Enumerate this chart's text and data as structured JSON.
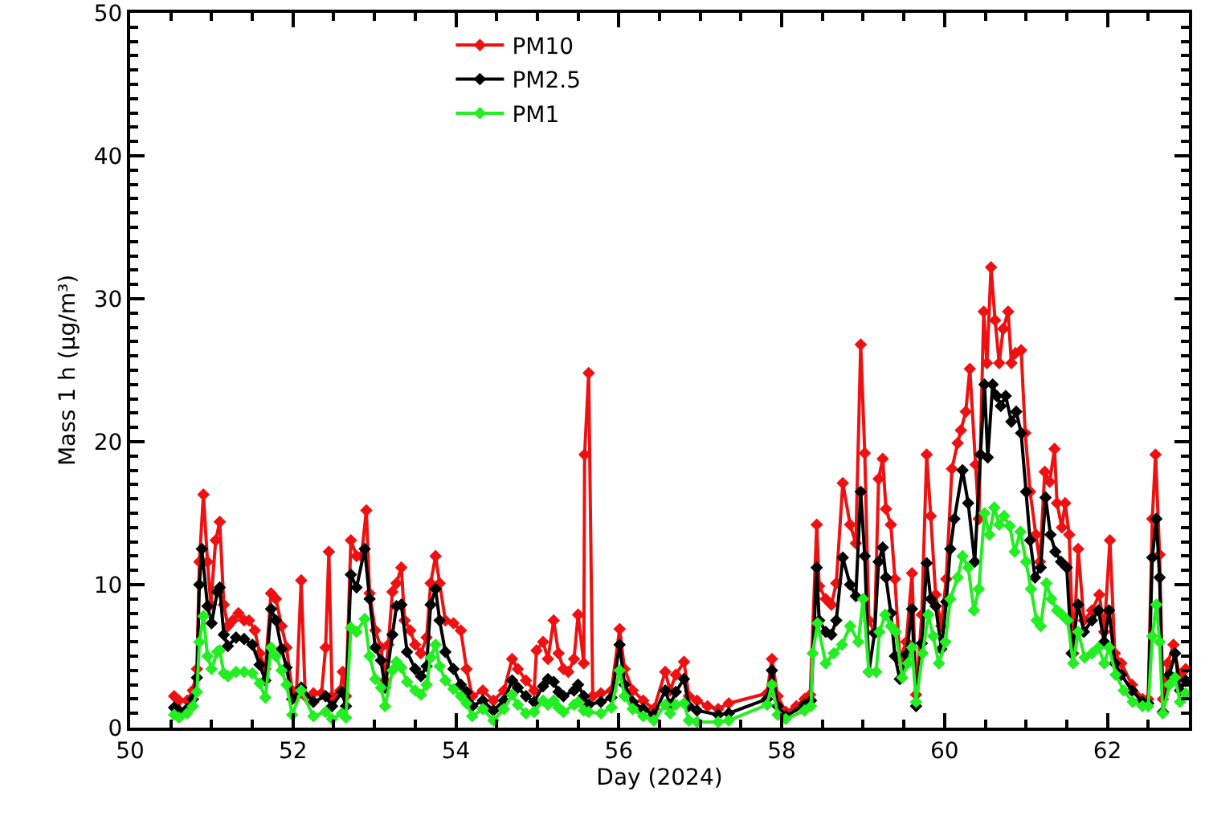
{
  "chart_data": {
    "type": "line",
    "xlabel": "Day (2024)",
    "ylabel": "Mass 1 h (μg/m³)",
    "xlim": [
      50,
      63
    ],
    "xticks": [
      50,
      52,
      54,
      56,
      58,
      60,
      62
    ],
    "ylim": [
      0,
      50
    ],
    "yticks": [
      0,
      10,
      20,
      30,
      40,
      50
    ],
    "grid": false,
    "legend": "top left",
    "marker": "diamond",
    "line_style": "solid",
    "series": [
      {
        "name": "PM10",
        "color": "#ee1111",
        "x": [
          50.54,
          50.6,
          50.7,
          50.77,
          50.82,
          50.85,
          50.9,
          50.95,
          50.99,
          51.05,
          51.1,
          51.15,
          51.2,
          51.26,
          51.33,
          51.4,
          51.46,
          51.53,
          51.59,
          51.66,
          51.73,
          51.79,
          51.86,
          51.92,
          51.99,
          52.04,
          52.1,
          52.15,
          52.25,
          52.35,
          52.4,
          52.44,
          52.48,
          52.58,
          52.61,
          52.65,
          52.71,
          52.78,
          52.84,
          52.9,
          52.94,
          53.01,
          53.08,
          53.13,
          53.17,
          53.22,
          53.27,
          53.33,
          53.37,
          53.44,
          53.5,
          53.57,
          53.64,
          53.69,
          53.75,
          53.8,
          53.87,
          53.97,
          54.06,
          54.13,
          54.2,
          54.33,
          54.46,
          54.59,
          54.69,
          54.76,
          54.86,
          54.96,
          54.99,
          55.07,
          55.13,
          55.2,
          55.26,
          55.32,
          55.38,
          55.45,
          55.5,
          55.57,
          55.58,
          55.63,
          55.68,
          55.78,
          55.91,
          56.01,
          56.07,
          56.17,
          56.3,
          56.43,
          56.57,
          56.63,
          56.7,
          56.8,
          56.86,
          56.96,
          57.09,
          57.22,
          57.35,
          57.82,
          57.88,
          57.95,
          58.05,
          58.18,
          58.28,
          58.35,
          58.43,
          58.46,
          58.54,
          58.61,
          58.67,
          58.75,
          58.84,
          58.91,
          58.97,
          59.02,
          59.07,
          59.14,
          59.19,
          59.24,
          59.28,
          59.34,
          59.39,
          59.45,
          59.53,
          59.6,
          59.65,
          59.72,
          59.78,
          59.83,
          59.89,
          59.96,
          60.02,
          60.09,
          60.16,
          60.2,
          60.26,
          60.31,
          60.38,
          60.42,
          60.48,
          60.52,
          60.57,
          60.62,
          60.67,
          60.72,
          60.78,
          60.82,
          60.87,
          60.94,
          60.99,
          61.05,
          61.12,
          61.17,
          61.23,
          61.29,
          61.35,
          61.38,
          61.44,
          61.48,
          61.53,
          61.58,
          61.64,
          61.71,
          61.81,
          61.9,
          61.96,
          62.03,
          62.09,
          62.17,
          62.3,
          62.43,
          62.5,
          62.55,
          62.59,
          62.64,
          62.68,
          62.74,
          62.81,
          62.88,
          62.96
        ],
        "values": [
          2.2,
          1.9,
          1.9,
          2.6,
          4.1,
          11.6,
          16.3,
          11.6,
          8.6,
          13.1,
          14.4,
          8.6,
          7.1,
          7.5,
          8,
          7.5,
          7.5,
          6.8,
          5.2,
          4.1,
          9.4,
          9,
          7.1,
          5.6,
          2.6,
          2.2,
          10.3,
          2.2,
          2.4,
          2.4,
          5.6,
          12.3,
          2.2,
          2.6,
          3.9,
          2.2,
          13.1,
          12,
          12,
          15.2,
          9.4,
          6.8,
          5.6,
          3.3,
          5.8,
          9.5,
          10.1,
          11.2,
          7.5,
          6.8,
          5.8,
          5.2,
          6.3,
          10.1,
          12,
          10.1,
          7.5,
          7.3,
          6.8,
          4.1,
          2.2,
          2.6,
          1.9,
          2.6,
          4.8,
          4.1,
          3.3,
          2.6,
          5.4,
          6,
          4.8,
          7.5,
          5.2,
          4.1,
          3.9,
          4.8,
          7.9,
          4.5,
          19.1,
          24.8,
          2.2,
          2.4,
          2.6,
          6.9,
          4.1,
          2.6,
          1.9,
          1.3,
          3.9,
          2.6,
          3.7,
          4.6,
          2.2,
          1.9,
          1.5,
          1.3,
          1.7,
          2.4,
          4.8,
          2.2,
          1.1,
          1.5,
          2,
          2.3,
          14.2,
          9.9,
          9,
          8.6,
          10.1,
          17.1,
          14.2,
          12.9,
          26.8,
          19.2,
          7.5,
          6.7,
          17.4,
          18.8,
          15.3,
          14.2,
          10.4,
          4.8,
          6,
          10.8,
          2.3,
          7.9,
          19.1,
          14.8,
          9.3,
          7.1,
          10.4,
          18.1,
          19.9,
          20.8,
          22.1,
          25.1,
          18.4,
          14.6,
          29.1,
          25.5,
          32.2,
          28.5,
          25.5,
          27.9,
          29.1,
          25.5,
          26.2,
          26.4,
          20.6,
          16.5,
          13.5,
          11.6,
          17.9,
          17.2,
          19.5,
          15.7,
          14,
          15.7,
          13.5,
          5.2,
          12.5,
          7.5,
          8.2,
          9.3,
          6.7,
          13.1,
          5.2,
          4.5,
          3,
          2,
          2,
          14.6,
          19.1,
          12.1,
          2,
          4.5,
          5.8,
          3.7,
          4.1
        ]
      },
      {
        "name": "PM2.5",
        "color": "#000000",
        "x": [
          50.54,
          50.6,
          50.7,
          50.77,
          50.82,
          50.85,
          50.88,
          50.95,
          51,
          51.07,
          51.1,
          51.15,
          51.2,
          51.3,
          51.4,
          51.5,
          51.59,
          51.66,
          51.73,
          51.79,
          51.86,
          51.92,
          51.99,
          52.1,
          52.25,
          52.4,
          52.48,
          52.6,
          52.65,
          52.71,
          52.78,
          52.88,
          52.94,
          53.01,
          53.08,
          53.13,
          53.22,
          53.27,
          53.33,
          53.4,
          53.5,
          53.57,
          53.64,
          53.69,
          53.75,
          53.8,
          53.87,
          53.97,
          54.06,
          54.13,
          54.2,
          54.33,
          54.46,
          54.59,
          54.69,
          54.76,
          54.86,
          54.96,
          55.07,
          55.13,
          55.2,
          55.26,
          55.32,
          55.45,
          55.5,
          55.57,
          55.63,
          55.78,
          55.91,
          56.01,
          56.07,
          56.17,
          56.3,
          56.43,
          56.57,
          56.63,
          56.7,
          56.8,
          56.86,
          56.96,
          57.22,
          57.35,
          57.82,
          57.88,
          57.95,
          58.05,
          58.28,
          58.36,
          58.43,
          58.46,
          58.54,
          58.61,
          58.67,
          58.75,
          58.84,
          58.91,
          58.97,
          59.02,
          59.07,
          59.14,
          59.19,
          59.24,
          59.28,
          59.34,
          59.39,
          59.45,
          59.53,
          59.6,
          59.65,
          59.72,
          59.78,
          59.83,
          59.89,
          59.96,
          60.02,
          60.07,
          60.12,
          60.22,
          60.29,
          60.37,
          60.44,
          60.49,
          60.53,
          60.59,
          60.64,
          60.69,
          60.75,
          60.82,
          60.88,
          60.94,
          61,
          61.05,
          61.11,
          61.18,
          61.24,
          61.3,
          61.36,
          61.43,
          61.5,
          61.56,
          61.64,
          61.71,
          61.81,
          61.89,
          61.96,
          62.02,
          62.09,
          62.17,
          62.3,
          62.43,
          62.5,
          62.55,
          62.6,
          62.64,
          62.68,
          62.76,
          62.83,
          62.89,
          62.96
        ],
        "values": [
          1.4,
          1.2,
          1.3,
          2,
          3.5,
          10,
          12.5,
          8.5,
          7.3,
          9.5,
          9.8,
          6.5,
          5.7,
          6.3,
          6.2,
          5.8,
          4.4,
          3.3,
          8.3,
          7.5,
          5.5,
          4.2,
          2,
          2.8,
          1.8,
          2.2,
          1.5,
          2.5,
          1.5,
          10.7,
          9.8,
          12.5,
          9,
          5.6,
          4.7,
          2.8,
          6.5,
          8.5,
          8.6,
          5.3,
          4.1,
          3.6,
          4.3,
          8.6,
          9.7,
          7.5,
          5.3,
          4.1,
          3,
          2.5,
          1.5,
          1.9,
          1.2,
          1.9,
          3.3,
          2.8,
          2.2,
          1.8,
          2.9,
          3.4,
          3.2,
          2.5,
          2.2,
          2.6,
          3,
          2.2,
          1.6,
          1.8,
          2.1,
          5.8,
          3,
          1.8,
          1.3,
          0.9,
          2.6,
          1.6,
          2.5,
          3.4,
          1.5,
          1.2,
          0.9,
          1,
          2,
          4,
          1.5,
          0.8,
          1.6,
          1.9,
          11.2,
          7.5,
          6.7,
          6.5,
          7.5,
          11.9,
          10,
          9.2,
          16.5,
          12,
          3.9,
          6.6,
          11.6,
          12.6,
          10.5,
          8,
          5,
          3.4,
          5.1,
          8.3,
          1.5,
          5.9,
          11.5,
          9,
          8.5,
          5.5,
          8.8,
          12.5,
          14.6,
          18,
          15.7,
          11.6,
          19.1,
          24,
          18.9,
          24,
          23.2,
          22.5,
          23.2,
          21.4,
          22.1,
          20.6,
          16.5,
          13.1,
          10.5,
          11.2,
          16.1,
          13.5,
          12.3,
          11.6,
          11.2,
          5.2,
          8.6,
          6.7,
          7.5,
          8.2,
          6,
          8.2,
          4.5,
          3.7,
          2.6,
          1.8,
          1.7,
          11.9,
          14.6,
          10.5,
          1.1,
          3.7,
          5.2,
          2.6,
          3.3
        ]
      },
      {
        "name": "PM1",
        "color": "#22ee22",
        "x": [
          50.54,
          50.6,
          50.7,
          50.77,
          50.82,
          50.85,
          50.9,
          50.95,
          51,
          51.07,
          51.1,
          51.15,
          51.2,
          51.3,
          51.4,
          51.5,
          51.59,
          51.66,
          51.73,
          51.79,
          51.86,
          51.92,
          51.99,
          52.1,
          52.25,
          52.4,
          52.48,
          52.6,
          52.65,
          52.71,
          52.78,
          52.88,
          52.94,
          53.01,
          53.08,
          53.13,
          53.22,
          53.27,
          53.33,
          53.4,
          53.5,
          53.57,
          53.64,
          53.69,
          53.75,
          53.8,
          53.87,
          53.97,
          54.06,
          54.13,
          54.2,
          54.33,
          54.46,
          54.59,
          54.69,
          54.76,
          54.86,
          54.96,
          55.07,
          55.13,
          55.2,
          55.26,
          55.32,
          55.45,
          55.5,
          55.57,
          55.63,
          55.78,
          55.91,
          56.01,
          56.07,
          56.17,
          56.3,
          56.43,
          56.57,
          56.63,
          56.7,
          56.8,
          56.86,
          56.96,
          57.22,
          57.35,
          57.82,
          57.88,
          57.95,
          58.05,
          58.28,
          58.36,
          58.38,
          58.44,
          58.54,
          58.64,
          58.74,
          58.84,
          58.94,
          59,
          59.07,
          59.16,
          59.2,
          59.27,
          59.34,
          59.4,
          59.48,
          59.55,
          59.6,
          59.65,
          59.73,
          59.8,
          59.86,
          59.93,
          60.01,
          60.07,
          60.16,
          60.22,
          60.29,
          60.36,
          60.42,
          60.49,
          60.55,
          60.61,
          60.67,
          60.73,
          60.8,
          60.86,
          60.93,
          61,
          61.06,
          61.13,
          61.18,
          61.25,
          61.31,
          61.38,
          61.44,
          61.51,
          61.58,
          61.64,
          61.72,
          61.81,
          61.89,
          61.96,
          62.02,
          62.1,
          62.2,
          62.31,
          62.43,
          62.5,
          62.55,
          62.6,
          62.64,
          62.68,
          62.76,
          62.83,
          62.89,
          62.96
        ],
        "values": [
          0.9,
          0.7,
          1,
          1.5,
          2.5,
          6,
          7.8,
          5,
          4.1,
          5.3,
          5.4,
          3.8,
          3.6,
          3.9,
          3.9,
          3.8,
          3.1,
          2.1,
          5.6,
          5,
          4,
          3,
          0.9,
          2.6,
          0.8,
          1.1,
          0.6,
          1,
          0.7,
          7,
          6.7,
          7.6,
          5,
          3.4,
          2.8,
          1.5,
          4,
          4.6,
          4.2,
          3.2,
          2.6,
          2.3,
          3,
          4.9,
          5.8,
          4.3,
          3.3,
          2.7,
          2.2,
          1.7,
          0.8,
          1.3,
          0.5,
          1.3,
          2.3,
          1.6,
          1,
          1.1,
          1.9,
          1.6,
          1.9,
          1.4,
          1.1,
          1.6,
          1.8,
          1.2,
          1.1,
          1,
          1.4,
          4,
          2.2,
          1.3,
          0.8,
          0.5,
          1.6,
          1,
          1.6,
          1.7,
          0.5,
          0.4,
          0.4,
          0.5,
          1.6,
          3,
          0.9,
          0.6,
          1.2,
          1.5,
          5.2,
          7.3,
          4.5,
          5.2,
          5.8,
          7.1,
          6,
          9,
          3.9,
          3.9,
          6.7,
          7.9,
          7.1,
          6.7,
          3.5,
          4.5,
          5.6,
          1.8,
          5.2,
          7.9,
          6.4,
          4.5,
          6,
          9,
          10.5,
          12,
          11.2,
          8.2,
          9.7,
          15,
          13.5,
          15.4,
          14.2,
          14.8,
          14.1,
          12.3,
          13.7,
          11.6,
          9.7,
          7.5,
          7.1,
          10.1,
          9,
          8.2,
          7.9,
          7.5,
          4.5,
          6.7,
          4.9,
          5.2,
          5.6,
          4.5,
          5.6,
          3.7,
          2.6,
          1.8,
          1.5,
          1.5,
          6.4,
          8.6,
          6,
          1,
          3,
          3.5,
          1.8,
          2.4
        ]
      }
    ]
  }
}
